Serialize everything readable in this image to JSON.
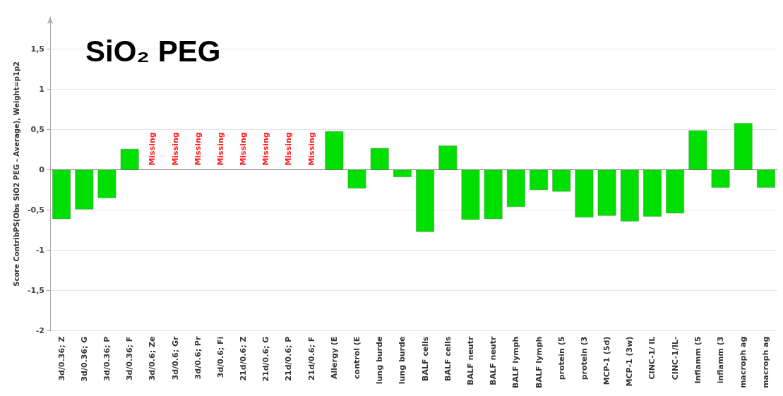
{
  "chart_data": {
    "type": "bar",
    "title": "SiO₂ PEG",
    "ylabel": "Score ContribPS(Obs SiO2 PEG - Average), Weight=p1p2",
    "categories": [
      "3d/0.36; Z",
      "3d/0.36; G",
      "3d/0.36; P",
      "3d/0.36; F",
      "3d/0.6; Ze",
      "3d/0.6; Gr",
      "3d/0.6; Pr",
      "3d/0.6; Fi",
      "21d/0.6; Z",
      "21d/0.6; G",
      "21d/0.6; P",
      "21d/0.6; F",
      "Allergy (E",
      "control (E",
      "lung burde",
      "lung burde",
      "BALF cells",
      "BALF cells",
      "BALF neutr",
      "BALF neutr",
      "BALF lymph",
      "BALF lymph",
      "protein (5",
      "protein (3",
      "MCP-1 (5d)",
      "MCP-1 (3w)",
      "CINC-1/ IL",
      "CINC-1/IL-",
      "Inflamm (5",
      "inflamm (3",
      "macroph ag",
      "macroph ag"
    ],
    "values": [
      -0.61,
      -0.49,
      -0.35,
      0.26,
      null,
      null,
      null,
      null,
      null,
      null,
      null,
      null,
      0.48,
      -0.23,
      0.27,
      -0.09,
      -0.77,
      0.3,
      -0.62,
      -0.61,
      -0.46,
      -0.25,
      -0.27,
      -0.59,
      -0.57,
      -0.64,
      -0.58,
      -0.54,
      0.49,
      -0.22,
      0.58,
      -0.22
    ],
    "color": "#00e000",
    "ylim": [
      -2,
      1.9
    ],
    "yticks": [
      -2,
      {
        "value": -1.5,
        "label": "-1,5"
      },
      -1,
      {
        "value": -0.5,
        "label": "-0,5"
      },
      0,
      {
        "value": 0.5,
        "label": "0,5"
      },
      1,
      {
        "value": 1.5,
        "label": "1,5"
      }
    ],
    "grid": "y",
    "value_labels": [
      null,
      null,
      null,
      null,
      "Missing",
      "Missing",
      "Missing",
      "Missing",
      "Missing",
      "Missing",
      "Missing",
      "Missing",
      null,
      null,
      null,
      null,
      null,
      null,
      null,
      null,
      null,
      null,
      null,
      null,
      null,
      null,
      null,
      null,
      null,
      null,
      null,
      null
    ]
  }
}
